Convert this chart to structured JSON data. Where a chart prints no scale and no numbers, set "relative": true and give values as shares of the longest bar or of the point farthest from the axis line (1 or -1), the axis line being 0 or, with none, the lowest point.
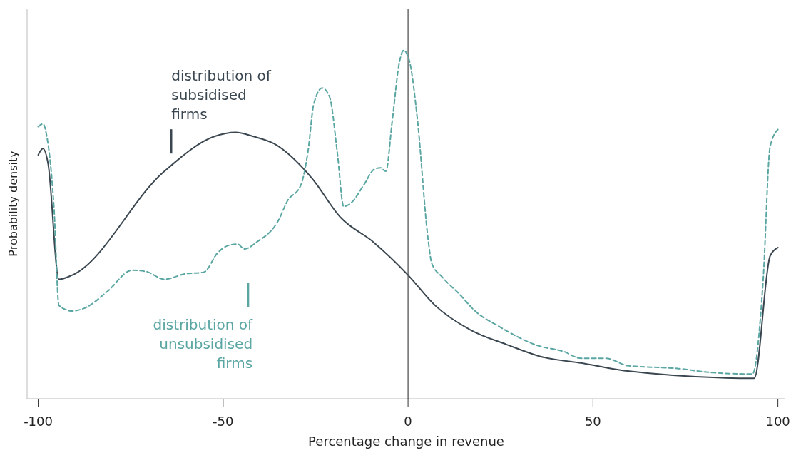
{
  "chart_data": {
    "type": "line",
    "relative": true,
    "xlabel": "Percentage change in revenue",
    "ylabel": "Probability density",
    "xlim": [
      -103,
      102
    ],
    "xticks": [
      -100,
      -50,
      0,
      50,
      100
    ],
    "grid": false,
    "marker": "none",
    "series": [
      {
        "color": "#3b4750",
        "line_style": "solid",
        "x": [
          -100,
          -98.7,
          -97.3,
          -94.4,
          -90.8,
          -66.1,
          -52.4,
          -46.6,
          -41.8,
          -36.2,
          -26.0,
          -18.3,
          -9.4,
          0,
          7.3,
          17,
          26.6,
          35.6,
          47.8,
          58.4,
          93.6,
          97.9,
          100
        ],
        "values": [
          0.7,
          0.718,
          0.673,
          0.343,
          0.355,
          0.651,
          0.753,
          0.765,
          0.753,
          0.732,
          0.633,
          0.521,
          0.45,
          0.355,
          0.268,
          0.197,
          0.156,
          0.122,
          0.101,
          0.081,
          0.059,
          0.41,
          0.434
        ]
      },
      {
        "color": "#5aa6a2",
        "line_style": "dashed",
        "x": [
          -100,
          -98.7,
          -97.7,
          -95.7,
          -94.4,
          -90.8,
          -87.1,
          -81.3,
          -74.6,
          -70.7,
          -65.9,
          -60.1,
          -55.3,
          -51.4,
          -48.6,
          -46.1,
          -44.2,
          -40.9,
          -35.1,
          -32.6,
          -29.0,
          -27.0,
          -25.5,
          -23.2,
          -21.2,
          -19.1,
          -17.4,
          -15.4,
          -12.0,
          -9.1,
          -7.5,
          -6.0,
          -4.3,
          -2.3,
          -1.2,
          0.4,
          2.5,
          5.4,
          6.4,
          9.3,
          14.1,
          17.9,
          24.7,
          35.3,
          42.0,
          46.8,
          53.6,
          59.4,
          72.8,
          82.5,
          93.1,
          96.0,
          97.9,
          100
        ],
        "values": [
          0.781,
          0.789,
          0.755,
          0.542,
          0.268,
          0.252,
          0.262,
          0.308,
          0.369,
          0.365,
          0.343,
          0.359,
          0.363,
          0.42,
          0.44,
          0.444,
          0.43,
          0.45,
          0.511,
          0.568,
          0.613,
          0.714,
          0.846,
          0.892,
          0.866,
          0.704,
          0.552,
          0.562,
          0.613,
          0.659,
          0.663,
          0.653,
          0.795,
          0.968,
          1,
          0.968,
          0.805,
          0.46,
          0.389,
          0.349,
          0.298,
          0.254,
          0.207,
          0.152,
          0.136,
          0.116,
          0.116,
          0.095,
          0.087,
          0.075,
          0.071,
          0.339,
          0.724,
          0.773
        ]
      }
    ],
    "ref_lines": [
      {
        "axis": "x",
        "value": 0,
        "color": "#222222"
      }
    ],
    "annotations": [
      "distribution of subsidised firms",
      "distribution of unsubsidised firms"
    ]
  }
}
